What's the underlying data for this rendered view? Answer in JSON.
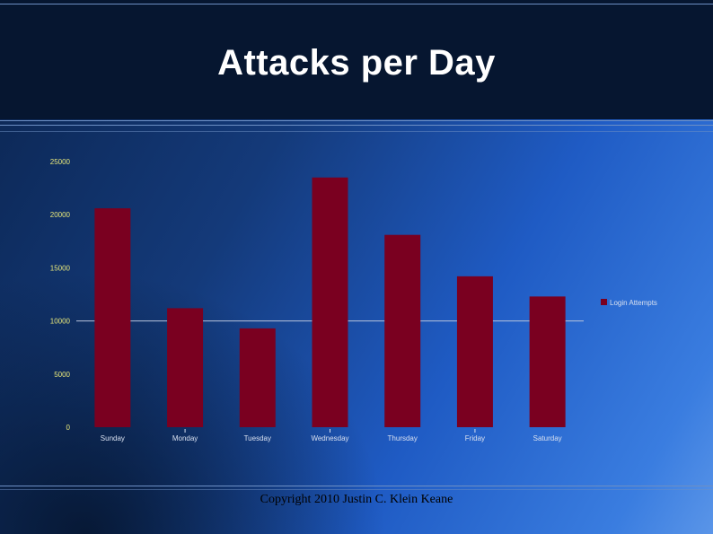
{
  "slide": {
    "title": "Attacks per Day",
    "footer": "Copyright 2010 Justin C. Klein Keane"
  },
  "colors": {
    "header_bg": "#061630",
    "bar": "#7a0020",
    "title_text": "#ffffff"
  },
  "chart_data": {
    "type": "bar",
    "title": "",
    "xlabel": "",
    "ylabel": "",
    "categories": [
      "Sunday",
      "Monday",
      "Tuesday",
      "Wednesday",
      "Thursday",
      "Friday",
      "Saturday"
    ],
    "series": [
      {
        "name": "Login Attempts",
        "values": [
          20600,
          11200,
          9300,
          23500,
          18100,
          14200,
          12300
        ]
      }
    ],
    "ylim": [
      0,
      25000
    ],
    "yticks": [
      "0",
      "5000",
      "10000",
      "15000",
      "20000",
      "25000"
    ],
    "legend_position": "right",
    "grid": false
  }
}
